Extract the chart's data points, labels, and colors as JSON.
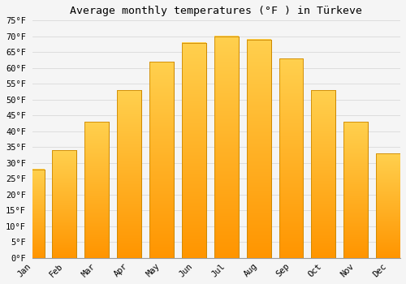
{
  "title": "Average monthly temperatures (°F ) in Türkeve",
  "months": [
    "Jan",
    "Feb",
    "Mar",
    "Apr",
    "May",
    "Jun",
    "Jul",
    "Aug",
    "Sep",
    "Oct",
    "Nov",
    "Dec"
  ],
  "values": [
    28,
    34,
    43,
    53,
    62,
    68,
    70,
    69,
    63,
    53,
    43,
    33
  ],
  "bar_color": "#FFAB00",
  "bar_color_top": "#FFD04E",
  "bar_edge_color": "#CC8800",
  "background_color": "#F5F5F5",
  "grid_color": "#DDDDDD",
  "ylim": [
    0,
    75
  ],
  "ytick_step": 5,
  "title_fontsize": 9.5,
  "tick_fontsize": 7.5,
  "font_family": "monospace",
  "bar_width": 0.75
}
